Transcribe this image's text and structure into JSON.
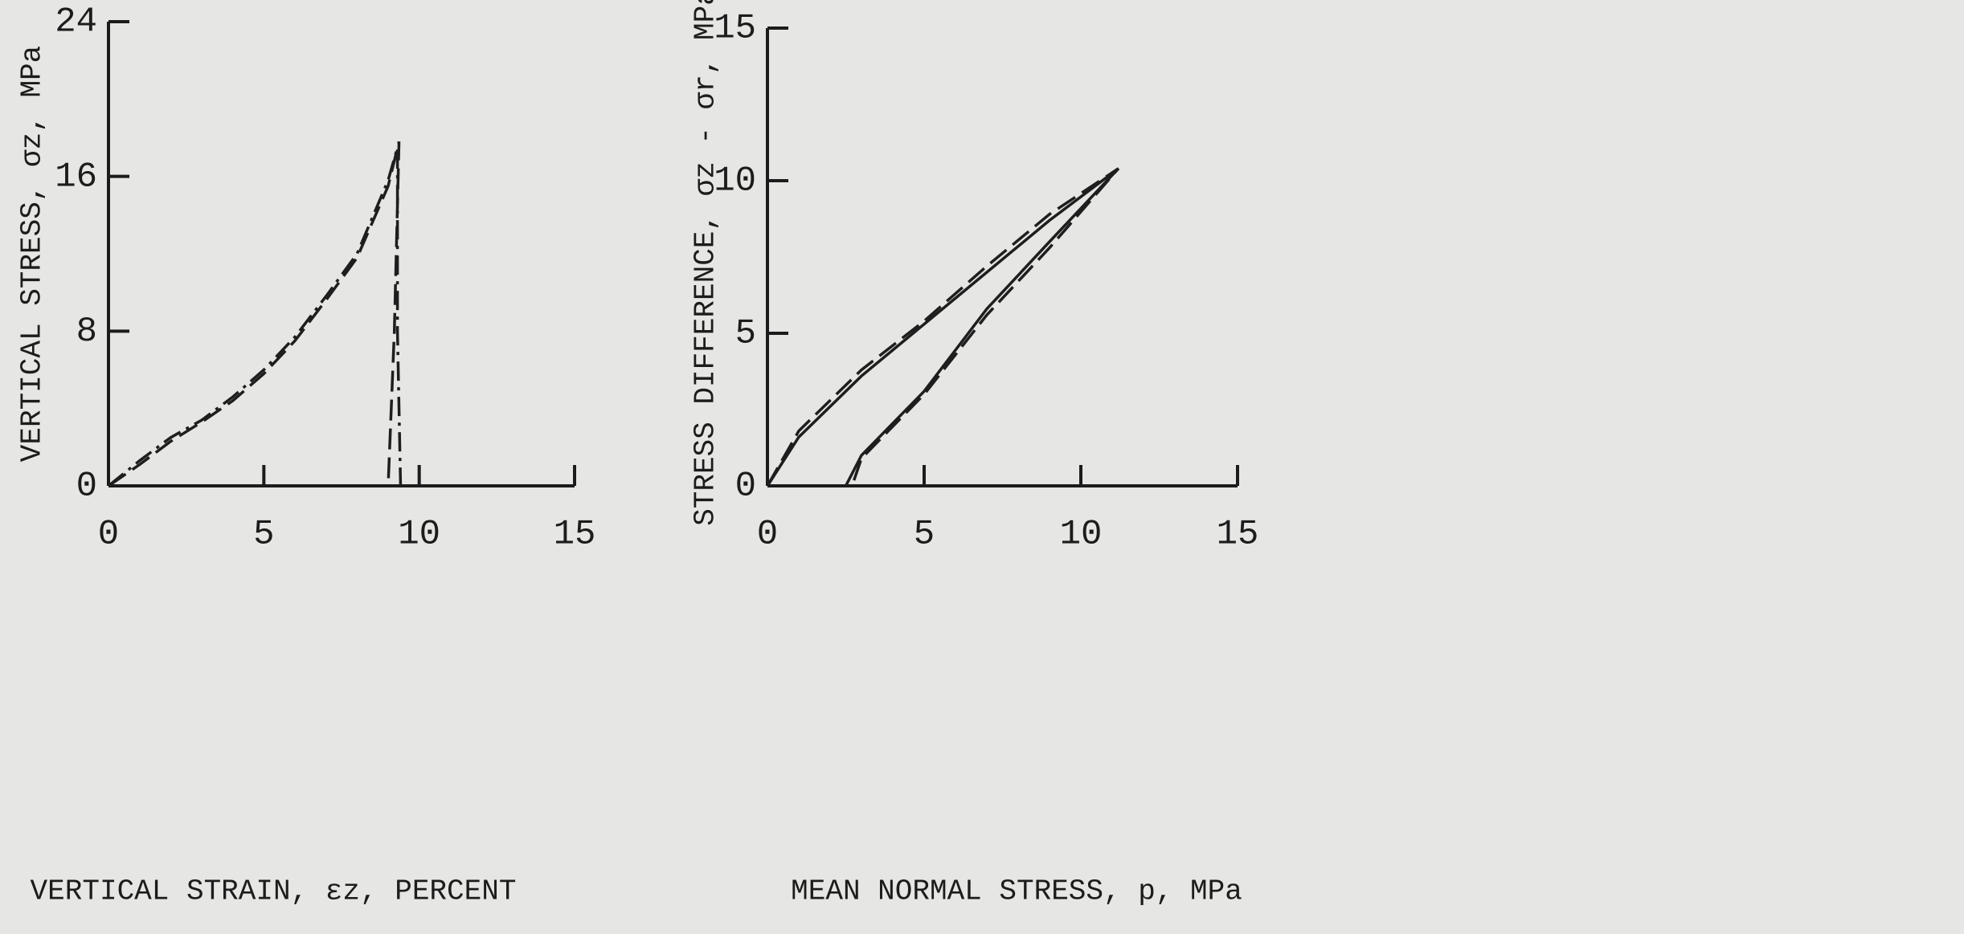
{
  "chart_data": [
    {
      "type": "line",
      "ylabel": "VERTICAL STRESS, σz, MPa",
      "xlabel": "VERTICAL STRAIN, εz, PERCENT",
      "xlim": [
        0,
        15
      ],
      "xticks": [
        0,
        5,
        10,
        15
      ],
      "ylim": [
        0,
        24
      ],
      "yticks": [
        0,
        8,
        16,
        24
      ],
      "series": [
        {
          "color": "#1e1e1e",
          "dash": "dashed",
          "x": [
            0,
            1,
            2,
            3,
            4,
            5,
            6,
            7,
            8,
            9,
            9.35,
            9.2,
            9.0
          ],
          "values": [
            0,
            1.1,
            2.3,
            3.3,
            4.4,
            5.8,
            7.5,
            9.6,
            11.8,
            15.5,
            17.8,
            8,
            0
          ]
        },
        {
          "color": "#1e1e1e",
          "dash": "dashdot",
          "x": [
            0,
            1,
            2,
            3,
            4,
            5,
            6,
            7,
            8,
            9,
            9.3,
            9.3,
            9.4
          ],
          "values": [
            0,
            1.3,
            2.5,
            3.4,
            4.6,
            6.0,
            7.7,
            9.8,
            12,
            15.8,
            17.5,
            8,
            0
          ]
        }
      ]
    },
    {
      "type": "line",
      "ylabel": "STRESS DIFFERENCE, σz - σr, MPa",
      "xlabel": "MEAN NORMAL STRESS, p, MPa",
      "xlim": [
        0,
        15
      ],
      "xticks": [
        0,
        5,
        10,
        15
      ],
      "ylim": [
        0,
        15
      ],
      "yticks": [
        0,
        5,
        10,
        15
      ],
      "series": [
        {
          "color": "#1e1e1e",
          "dash": "solid",
          "x": [
            0,
            1,
            3,
            5,
            7,
            9,
            11.2,
            9,
            7,
            5,
            3,
            2.5
          ],
          "values": [
            0,
            1.6,
            3.6,
            5.3,
            7,
            8.7,
            10.4,
            8,
            5.8,
            3.1,
            1,
            0
          ]
        },
        {
          "color": "#1e1e1e",
          "dash": "dashed",
          "x": [
            0,
            1,
            3,
            5,
            7,
            9,
            11.2,
            9,
            7,
            5,
            3,
            2.7
          ],
          "values": [
            0,
            1.8,
            3.8,
            5.4,
            7.2,
            8.9,
            10.4,
            7.8,
            5.6,
            3.0,
            0.9,
            0
          ]
        }
      ]
    }
  ]
}
